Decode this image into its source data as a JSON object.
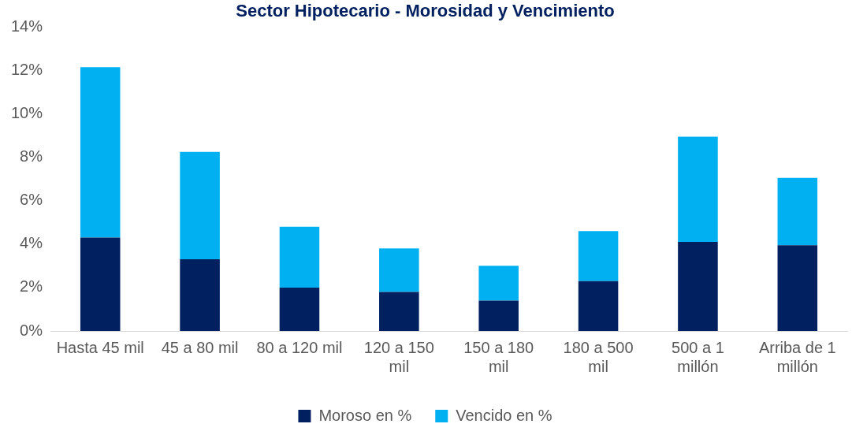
{
  "chart_data": {
    "type": "bar",
    "title": "Sector Hipotecario - Morosidad y Vencimiento",
    "categories": [
      "Hasta 45 mil",
      "45 a 80 mil",
      "80 a 120 mil",
      "120 a 150 mil",
      "150 a 180 mil",
      "180 a 500 mil",
      "500 a 1 millón",
      "Arriba de 1 millón"
    ],
    "series": [
      {
        "name": "Moroso en %",
        "color": "#002060",
        "values": [
          4.3,
          3.3,
          2.0,
          1.8,
          1.4,
          2.3,
          4.1,
          3.95
        ]
      },
      {
        "name": "Vencido en %",
        "color": "#00b0f0",
        "values": [
          7.85,
          4.95,
          2.8,
          2.0,
          1.6,
          2.3,
          4.85,
          3.1
        ]
      }
    ],
    "stacked": true,
    "ylim": [
      0,
      14
    ],
    "yticks": [
      {
        "value": 0,
        "label": "0%"
      },
      {
        "value": 2,
        "label": "2%"
      },
      {
        "value": 4,
        "label": "4%"
      },
      {
        "value": 6,
        "label": "6%"
      },
      {
        "value": 8,
        "label": "8%"
      },
      {
        "value": 10,
        "label": "10%"
      },
      {
        "value": 12,
        "label": "12%"
      },
      {
        "value": 14,
        "label": "14%"
      }
    ],
    "grid": false,
    "legend": "bottom"
  }
}
